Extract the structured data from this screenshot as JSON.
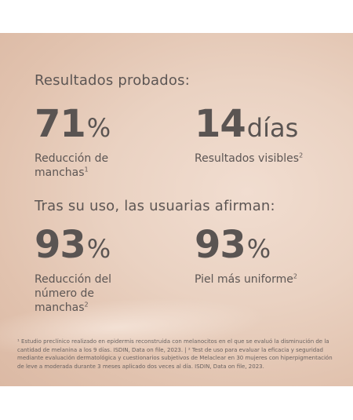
{
  "heading_results": "Resultados probados:",
  "heading_users": "Tras su uso, las usuarias afirman:",
  "stats": [
    {
      "value": "71",
      "unit": "%",
      "desc": "Reducción de\nmanchas",
      "note": "1"
    },
    {
      "value": "14",
      "unit": "días",
      "desc": "Resultados visibles",
      "note": "2"
    },
    {
      "value": "93",
      "unit": "%",
      "desc": "Reducción del\nnúmero de\nmanchas",
      "note": "2"
    },
    {
      "value": "93",
      "unit": "%",
      "desc": "Piel más uniforme",
      "note": "2"
    }
  ],
  "footnote": "¹ Estudio preclínico realizado en epidermis reconstruida con melanocitos en el que se evaluó la disminución de la cantidad de melanina a los 9 días. ISDIN, Data on file, 2023. | ² Test de uso para evaluar la eficacia y seguridad mediante evaluación dermatológica y cuestionarios subjetivos de Melaclear en 30 mujeres con hiperpigmentación de leve a moderada durante 3 meses aplicado dos veces al día. ISDIN, Data on file, 2023."
}
